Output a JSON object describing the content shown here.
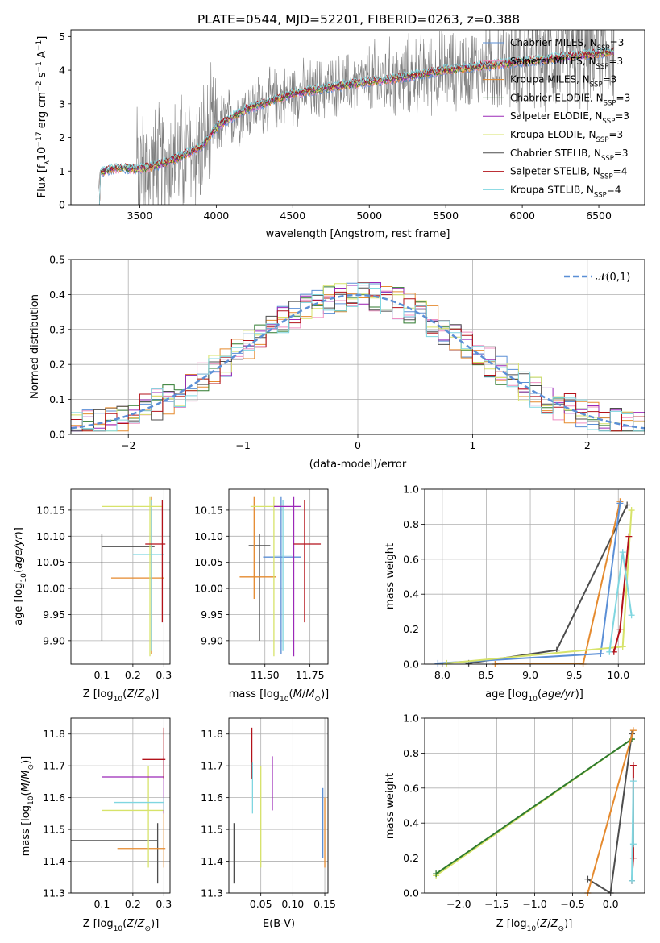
{
  "figure": {
    "title": "PLATE=0544, MJD=52201, FIBERID=0263, z=0.388"
  },
  "colors": {
    "Chabrier MILES": "#5b8fd6",
    "Salpeter MILES": "#ef8fc2",
    "Kroupa MILES": "#e58a2e",
    "Chabrier ELODIE": "#2e7a2e",
    "Salpeter ELODIE": "#9b28b7",
    "Kroupa ELODIE": "#d7e36a",
    "Chabrier STELIB": "#4d4d4d",
    "Salpeter STELIB": "#b3121a",
    "Kroupa STELIB": "#7fd6e0",
    "data": "#808080"
  },
  "chart_data": [
    {
      "panel": "spectrum",
      "type": "line",
      "xlabel": "wavelength [Angstrom, rest frame]",
      "ylabel": "Flux [f_λ 10^{-17} erg cm^{-2} s^{-1} A^{-1}]",
      "xlim": [
        3050,
        6800
      ],
      "ylim": [
        0,
        5.2
      ],
      "xticks": [
        3500,
        4000,
        4500,
        5000,
        5500,
        6000,
        6500
      ],
      "yticks": [
        0,
        1,
        2,
        3,
        4,
        5
      ],
      "legend_position": "top-right",
      "legend": [
        {
          "name": "Chabrier MILES",
          "nssp": "3"
        },
        {
          "name": "Salpeter MILES",
          "nssp": "3"
        },
        {
          "name": "Kroupa MILES",
          "nssp": "3"
        },
        {
          "name": "Chabrier ELODIE",
          "nssp": "3"
        },
        {
          "name": "Salpeter ELODIE",
          "nssp": "3"
        },
        {
          "name": "Kroupa ELODIE",
          "nssp": "3"
        },
        {
          "name": "Chabrier STELIB",
          "nssp": "3"
        },
        {
          "name": "Salpeter STELIB",
          "nssp": "4"
        },
        {
          "name": "Kroupa STELIB",
          "nssp": "4"
        }
      ],
      "model_continuum": {
        "x": [
          3220,
          3240,
          3300,
          3400,
          3480,
          3600,
          3700,
          3800,
          3900,
          3950,
          4000,
          4100,
          4200,
          4300,
          4400,
          4500,
          4700,
          4900,
          5100,
          5300,
          5500,
          5700,
          5900,
          6100,
          6300,
          6500,
          6600
        ],
        "y": [
          0,
          0.95,
          1.05,
          1.1,
          1.05,
          1.15,
          1.3,
          1.5,
          1.7,
          2.0,
          2.3,
          2.6,
          2.85,
          3.0,
          3.15,
          3.3,
          3.45,
          3.6,
          3.7,
          3.85,
          4.0,
          4.1,
          4.2,
          4.3,
          4.4,
          4.5,
          4.55
        ]
      }
    },
    {
      "panel": "residuals",
      "type": "line",
      "xlabel": "(data-model)/error",
      "ylabel": "Normed distribution",
      "xlim": [
        -2.5,
        2.5
      ],
      "ylim": [
        0,
        0.5
      ],
      "xticks": [
        -2,
        -1,
        0,
        1,
        2
      ],
      "yticks": [
        0.0,
        0.1,
        0.2,
        0.3,
        0.4,
        0.5
      ],
      "legend_position": "top-right",
      "legend": [
        "𝒩(0,1)"
      ],
      "hist_bin_width": 0.1
    },
    {
      "panel": "age-vs-Z",
      "type": "scatter",
      "xlabel": "Z [log10(Z/Z⊙)]",
      "ylabel": "age  [log10(age/yr)]",
      "xlim": [
        0.0,
        0.32
      ],
      "ylim": [
        9.855,
        10.19
      ],
      "xticks": [
        0.1,
        0.2,
        0.3
      ],
      "yticks": [
        9.9,
        9.95,
        10.0,
        10.05,
        10.1,
        10.15
      ],
      "points": [
        {
          "series": "Chabrier STELIB",
          "x": 0.1,
          "y": 10.08,
          "xerr": [
            0.1,
            0.27
          ],
          "yerr": [
            9.9,
            10.105
          ]
        },
        {
          "series": "Kroupa MILES",
          "x": 0.26,
          "y": 10.02,
          "xerr": [
            0.13,
            0.3
          ],
          "yerr": [
            9.875,
            10.175
          ]
        },
        {
          "series": "Kroupa STELIB",
          "x": 0.26,
          "y": 10.065,
          "xerr": [
            0.2,
            0.3
          ],
          "yerr": [
            9.88,
            10.17
          ]
        },
        {
          "series": "Kroupa ELODIE",
          "x": 0.255,
          "y": 10.157,
          "xerr": [
            0.1,
            0.295
          ],
          "yerr": [
            9.87,
            10.175
          ]
        },
        {
          "series": "Salpeter STELIB",
          "x": 0.295,
          "y": 10.085,
          "xerr": [
            0.24,
            0.305
          ],
          "yerr": [
            9.935,
            10.17
          ]
        }
      ]
    },
    {
      "panel": "age-vs-mass",
      "type": "scatter",
      "xlabel": "mass [log10(M/M⊙)]",
      "ylabel": "",
      "xlim": [
        11.3,
        11.85
      ],
      "ylim": [
        9.855,
        10.19
      ],
      "xticks": [
        11.5,
        11.75
      ],
      "tick_labels": [
        "11.50",
        "11.75"
      ],
      "yticks": [
        9.9,
        9.95,
        10.0,
        10.05,
        10.1,
        10.15
      ],
      "points": [
        {
          "series": "Chabrier STELIB",
          "x": 11.47,
          "y": 10.082,
          "xerr": [
            11.41,
            11.53
          ],
          "yerr": [
            9.9,
            10.105
          ]
        },
        {
          "series": "Kroupa MILES",
          "x": 11.44,
          "y": 10.022,
          "xerr": [
            11.36,
            11.56
          ],
          "yerr": [
            9.98,
            10.175
          ]
        },
        {
          "series": "Chabrier MILES",
          "x": 11.59,
          "y": 10.06,
          "xerr": [
            11.49,
            11.7
          ],
          "yerr": [
            9.875,
            10.175
          ]
        },
        {
          "series": "Kroupa STELIB",
          "x": 11.6,
          "y": 10.064,
          "xerr": [
            11.55,
            11.65
          ],
          "yerr": [
            9.88,
            10.17
          ]
        },
        {
          "series": "Kroupa ELODIE",
          "x": 11.55,
          "y": 10.157,
          "xerr": [
            11.42,
            11.6
          ],
          "yerr": [
            9.87,
            10.175
          ]
        },
        {
          "series": "Salpeter ELODIE",
          "x": 11.66,
          "y": 10.157,
          "xerr": [
            11.55,
            11.7
          ],
          "yerr": [
            9.87,
            10.175
          ]
        },
        {
          "series": "Salpeter STELIB",
          "x": 11.72,
          "y": 10.085,
          "xerr": [
            11.66,
            11.81
          ],
          "yerr": [
            9.935,
            10.17
          ]
        }
      ]
    },
    {
      "panel": "massweight-vs-age",
      "type": "line",
      "xlabel": "age  [log10(age/yr)]",
      "ylabel": "mass weight",
      "xlim": [
        7.8,
        10.3
      ],
      "ylim": [
        0.0,
        1.0
      ],
      "xticks": [
        8.0,
        8.5,
        9.0,
        9.5,
        10.0
      ],
      "yticks": [
        0.0,
        0.2,
        0.4,
        0.6,
        0.8,
        1.0
      ],
      "series": [
        {
          "name": "Chabrier STELIB",
          "x": [
            8.3,
            9.3,
            10.1
          ],
          "y": [
            0.005,
            0.08,
            0.91
          ]
        },
        {
          "name": "Kroupa MILES",
          "x": [
            8.6,
            9.6,
            10.02
          ],
          "y": [
            0.0,
            0.0,
            0.93
          ]
        },
        {
          "name": "Chabrier MILES",
          "x": [
            7.95,
            9.8,
            10.02
          ],
          "y": [
            0.005,
            0.06,
            0.92
          ]
        },
        {
          "name": "Kroupa ELODIE",
          "x": [
            8.05,
            10.05,
            10.15
          ],
          "y": [
            0.005,
            0.1,
            0.88
          ]
        },
        {
          "name": "Salpeter STELIB",
          "x": [
            9.95,
            10.02,
            10.12
          ],
          "y": [
            0.07,
            0.2,
            0.73
          ]
        },
        {
          "name": "Kroupa STELIB",
          "x": [
            9.9,
            10.05,
            10.15
          ],
          "y": [
            0.07,
            0.64,
            0.28
          ]
        }
      ]
    },
    {
      "panel": "mass-vs-Z",
      "type": "scatter",
      "xlabel": "Z [log10(Z/Z⊙)]",
      "ylabel": "mass [log10(M/M⊙)]",
      "xlim": [
        0.0,
        0.32
      ],
      "ylim": [
        11.3,
        11.85
      ],
      "xticks": [
        0.1,
        0.2,
        0.3
      ],
      "yticks": [
        11.3,
        11.4,
        11.5,
        11.6,
        11.7,
        11.8
      ],
      "points": [
        {
          "series": "Chabrier STELIB",
          "x": 0.28,
          "y": 11.465,
          "xerr": [
            0.0,
            0.28
          ],
          "yerr": [
            11.33,
            11.52
          ]
        },
        {
          "series": "Kroupa MILES",
          "x": 0.3,
          "y": 11.44,
          "xerr": [
            0.15,
            0.305
          ],
          "yerr": [
            11.38,
            11.6
          ]
        },
        {
          "series": "Kroupa ELODIE",
          "x": 0.25,
          "y": 11.56,
          "xerr": [
            0.1,
            0.3
          ],
          "yerr": [
            11.38,
            11.7
          ]
        },
        {
          "series": "Salpeter ELODIE",
          "x": 0.3,
          "y": 11.665,
          "xerr": [
            0.1,
            0.3
          ],
          "yerr": [
            11.55,
            11.73
          ]
        },
        {
          "series": "Kroupa STELIB",
          "x": 0.3,
          "y": 11.585,
          "xerr": [
            0.14,
            0.3
          ],
          "yerr": [
            11.56,
            11.6
          ]
        },
        {
          "series": "Salpeter STELIB",
          "x": 0.3,
          "y": 11.72,
          "xerr": [
            0.23,
            0.305
          ],
          "yerr": [
            11.66,
            11.82
          ]
        }
      ]
    },
    {
      "panel": "mass-vs-EBV",
      "type": "scatter",
      "xlabel": "E(B-V)",
      "ylabel": "",
      "xlim": [
        0.0,
        0.155
      ],
      "ylim": [
        11.3,
        11.85
      ],
      "xticks": [
        0.05,
        0.1,
        0.15
      ],
      "tick_labels": [
        "0.05",
        "0.10",
        "0.15"
      ],
      "yticks": [
        11.3,
        11.4,
        11.5,
        11.6,
        11.7,
        11.8
      ],
      "points": [
        {
          "series": "Chabrier STELIB",
          "x": 0.008,
          "y": 11.465,
          "yerr": [
            11.33,
            11.52
          ]
        },
        {
          "series": "Salpeter STELIB",
          "x": 0.036,
          "y": 11.72,
          "yerr": [
            11.66,
            11.82
          ]
        },
        {
          "series": "Kroupa STELIB",
          "x": 0.037,
          "y": 11.6,
          "yerr": [
            11.55,
            11.71
          ]
        },
        {
          "series": "Kroupa ELODIE",
          "x": 0.05,
          "y": 11.56,
          "yerr": [
            11.38,
            11.7
          ]
        },
        {
          "series": "Salpeter ELODIE",
          "x": 0.068,
          "y": 11.665,
          "yerr": [
            11.56,
            11.73
          ]
        },
        {
          "series": "Chabrier MILES",
          "x": 0.147,
          "y": 11.56,
          "yerr": [
            11.41,
            11.63
          ]
        },
        {
          "series": "Kroupa MILES",
          "x": 0.15,
          "y": 11.44,
          "yerr": [
            11.38,
            11.6
          ]
        }
      ]
    },
    {
      "panel": "massweight-vs-Z",
      "type": "line",
      "xlabel": "Z [log10(Z/Z⊙)]",
      "ylabel": "mass weight",
      "xlim": [
        -2.45,
        0.45
      ],
      "ylim": [
        0.0,
        1.0
      ],
      "xticks": [
        -2.0,
        -1.5,
        -1.0,
        -0.5,
        0.0
      ],
      "yticks": [
        0.0,
        0.2,
        0.4,
        0.6,
        0.8,
        1.0
      ],
      "series": [
        {
          "name": "Kroupa ELODIE",
          "x": [
            -2.3,
            0.28
          ],
          "y": [
            0.1,
            0.88
          ]
        },
        {
          "name": "Chabrier ELODIE",
          "x": [
            -2.3,
            0.28
          ],
          "y": [
            0.11,
            0.88
          ]
        },
        {
          "name": "Chabrier STELIB",
          "x": [
            -0.3,
            0.0,
            0.28
          ],
          "y": [
            0.08,
            0.0,
            0.91
          ]
        },
        {
          "name": "Kroupa MILES",
          "x": [
            -0.3,
            0.3
          ],
          "y": [
            0.0,
            0.93
          ]
        },
        {
          "name": "Salpeter STELIB",
          "x": [
            0.28,
            0.3,
            0.3
          ],
          "y": [
            0.07,
            0.2,
            0.73
          ]
        },
        {
          "name": "Kroupa STELIB",
          "x": [
            0.28,
            0.3,
            0.3
          ],
          "y": [
            0.07,
            0.64,
            0.28
          ]
        }
      ]
    }
  ]
}
